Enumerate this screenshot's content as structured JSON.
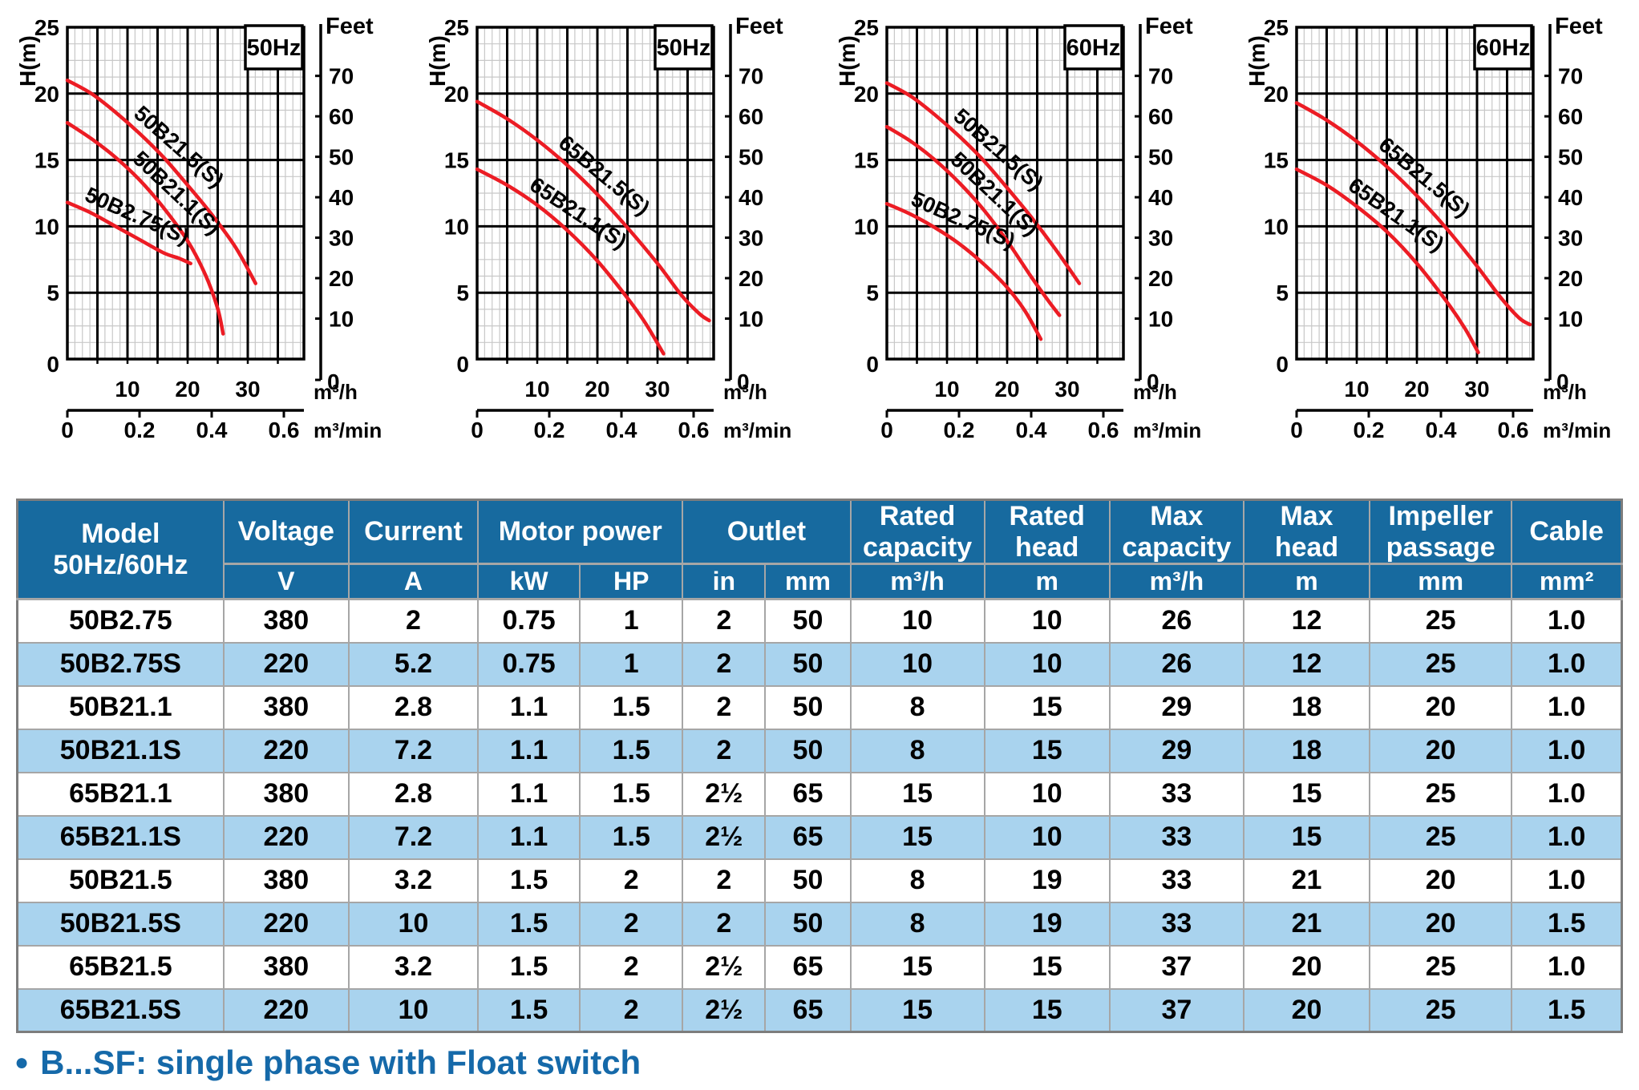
{
  "footer": {
    "bullet": "●",
    "text": "B...SF: single phase with Float switch"
  },
  "colors": {
    "header_blue": "#176a9f",
    "row_alt_blue": "#a9d3ee",
    "curve_red": "#ec1c24",
    "badge_blue": "#2273b6",
    "grid_major": "#000000",
    "grid_minor": "#c8c8c8",
    "note_blue": "#1569a9"
  },
  "chart_data": [
    {
      "type": "line",
      "badge": "50Hz",
      "ylabel_left": "H(m)",
      "ylabel_right": "Feet",
      "xlabel_primary": "m³/h",
      "xlabel_secondary": "m³/min",
      "ylim": [
        0,
        25
      ],
      "xlim_m3h": [
        0,
        39.3
      ],
      "y_ticks_left": [
        25,
        20,
        15,
        10,
        5,
        0
      ],
      "y_ticks_right_feet": [
        70,
        60,
        50,
        40,
        30,
        20,
        10,
        0
      ],
      "x_ticks_m3h": [
        10,
        20,
        30
      ],
      "x_ticks_m3min": [
        "0",
        "0.2",
        "0.4",
        "0.6"
      ],
      "grid": true,
      "series": [
        {
          "name": "50B21.5(S)",
          "label_frac": 0.26,
          "points": [
            [
              0,
              21
            ],
            [
              4,
              20
            ],
            [
              8,
              18.6
            ],
            [
              12,
              17
            ],
            [
              16,
              15.2
            ],
            [
              20,
              13.1
            ],
            [
              24,
              10.9
            ],
            [
              28,
              8.4
            ],
            [
              31.3,
              5.7
            ]
          ]
        },
        {
          "name": "50B21.1(S)",
          "label_frac": 0.27,
          "points": [
            [
              0,
              17.8
            ],
            [
              4,
              16.6
            ],
            [
              8,
              15.2
            ],
            [
              12,
              13.5
            ],
            [
              16,
              11.4
            ],
            [
              20,
              8.9
            ],
            [
              23,
              6.3
            ],
            [
              25,
              3.8
            ],
            [
              25.9,
              1.9
            ]
          ]
        },
        {
          "name": "50B2.75(S)",
          "label_frac": 0.1,
          "points": [
            [
              0,
              11.8
            ],
            [
              4,
              11
            ],
            [
              8,
              10
            ],
            [
              12,
              9
            ],
            [
              16,
              8
            ],
            [
              18.5,
              7.6
            ],
            [
              20.5,
              7.2
            ]
          ]
        }
      ]
    },
    {
      "type": "line",
      "badge": "50Hz",
      "ylabel_left": "H(m)",
      "ylabel_right": "Feet",
      "xlabel_primary": "m³/h",
      "xlabel_secondary": "m³/min",
      "ylim": [
        0,
        25
      ],
      "xlim_m3h": [
        0,
        39.3
      ],
      "y_ticks_left": [
        25,
        20,
        15,
        10,
        5,
        0
      ],
      "y_ticks_right_feet": [
        70,
        60,
        50,
        40,
        30,
        20,
        10,
        0
      ],
      "x_ticks_m3h": [
        10,
        20,
        30
      ],
      "x_ticks_m3min": [
        "0",
        "0.2",
        "0.4",
        "0.6"
      ],
      "grid": true,
      "series": [
        {
          "name": "65B21.5(S)",
          "label_frac": 0.28,
          "points": [
            [
              0,
              19.4
            ],
            [
              5,
              18.1
            ],
            [
              10,
              16.5
            ],
            [
              15,
              14.6
            ],
            [
              20,
              12.4
            ],
            [
              25,
              9.9
            ],
            [
              30,
              7.2
            ],
            [
              34,
              4.8
            ],
            [
              37,
              3.4
            ],
            [
              38.6,
              2.9
            ]
          ]
        },
        {
          "name": "65B21.1(S)",
          "label_frac": 0.2,
          "points": [
            [
              0,
              14.3
            ],
            [
              5,
              13.1
            ],
            [
              10,
              11.6
            ],
            [
              15,
              9.7
            ],
            [
              20,
              7.4
            ],
            [
              25,
              4.6
            ],
            [
              28,
              2.7
            ],
            [
              31,
              0.4
            ]
          ]
        }
      ]
    },
    {
      "type": "line",
      "badge": "60Hz",
      "ylabel_left": "H(m)",
      "ylabel_right": "Feet",
      "xlabel_primary": "m³/h",
      "xlabel_secondary": "m³/min",
      "ylim": [
        0,
        25
      ],
      "xlim_m3h": [
        0,
        39.3
      ],
      "y_ticks_left": [
        25,
        20,
        15,
        10,
        5,
        0
      ],
      "y_ticks_right_feet": [
        70,
        60,
        50,
        40,
        30,
        20,
        10,
        0
      ],
      "x_ticks_m3h": [
        10,
        20,
        30
      ],
      "x_ticks_m3min": [
        "0",
        "0.2",
        "0.4",
        "0.6"
      ],
      "grid": true,
      "series": [
        {
          "name": "50B21.5(S)",
          "label_frac": 0.26,
          "points": [
            [
              0,
              20.8
            ],
            [
              4,
              19.8
            ],
            [
              8,
              18.4
            ],
            [
              12,
              16.8
            ],
            [
              16,
              15
            ],
            [
              20,
              12.9
            ],
            [
              24,
              10.7
            ],
            [
              28,
              8.3
            ],
            [
              32,
              5.7
            ]
          ]
        },
        {
          "name": "50B21.1(S)",
          "label_frac": 0.27,
          "points": [
            [
              0,
              17.5
            ],
            [
              4,
              16.4
            ],
            [
              8,
              15
            ],
            [
              12,
              13.3
            ],
            [
              16,
              11.3
            ],
            [
              20,
              8.9
            ],
            [
              24,
              6.2
            ],
            [
              27,
              4.3
            ],
            [
              28.7,
              3.3
            ]
          ]
        },
        {
          "name": "50B2.75(S)",
          "label_frac": 0.1,
          "points": [
            [
              0,
              11.7
            ],
            [
              4,
              10.9
            ],
            [
              8,
              9.9
            ],
            [
              12,
              8.7
            ],
            [
              16,
              7.2
            ],
            [
              20,
              5.4
            ],
            [
              23,
              3.6
            ],
            [
              25.6,
              1.5
            ]
          ]
        }
      ]
    },
    {
      "type": "line",
      "badge": "60Hz",
      "ylabel_left": "H(m)",
      "ylabel_right": "Feet",
      "xlabel_primary": "m³/h",
      "xlabel_secondary": "m³/min",
      "ylim": [
        0,
        25
      ],
      "xlim_m3h": [
        0,
        39.3
      ],
      "y_ticks_left": [
        25,
        20,
        15,
        10,
        5,
        0
      ],
      "y_ticks_right_feet": [
        70,
        60,
        50,
        40,
        30,
        20,
        10,
        0
      ],
      "x_ticks_m3h": [
        10,
        20,
        30
      ],
      "x_ticks_m3min": [
        "0",
        "0.2",
        "0.4",
        "0.6"
      ],
      "grid": true,
      "series": [
        {
          "name": "65B21.5(S)",
          "label_frac": 0.28,
          "points": [
            [
              0,
              19.3
            ],
            [
              5,
              18
            ],
            [
              10,
              16.4
            ],
            [
              15,
              14.5
            ],
            [
              20,
              12.3
            ],
            [
              25,
              9.8
            ],
            [
              30,
              7
            ],
            [
              34,
              4.6
            ],
            [
              37,
              3.1
            ],
            [
              38.8,
              2.6
            ]
          ]
        },
        {
          "name": "65B21.1(S)",
          "label_frac": 0.2,
          "points": [
            [
              0,
              14.3
            ],
            [
              5,
              13.1
            ],
            [
              10,
              11.5
            ],
            [
              15,
              9.6
            ],
            [
              20,
              7.2
            ],
            [
              25,
              4.3
            ],
            [
              28,
              2.3
            ],
            [
              30.2,
              0.5
            ]
          ]
        }
      ]
    }
  ],
  "table": {
    "header": {
      "model_line1": "Model",
      "model_line2": "50Hz/60Hz",
      "groups": [
        {
          "label": "Voltage"
        },
        {
          "label": "Current"
        },
        {
          "label": "Motor power"
        },
        {
          "label": "Outlet"
        },
        {
          "label": "Rated capacity"
        },
        {
          "label": "Rated head"
        },
        {
          "label": "Max capacity"
        },
        {
          "label": "Max head"
        },
        {
          "label": "Impeller passage"
        },
        {
          "label": "Cable"
        }
      ],
      "units": [
        "V",
        "A",
        "kW",
        "HP",
        "in",
        "mm",
        "m³/h",
        "m",
        "m³/h",
        "m",
        "mm",
        "mm²"
      ]
    },
    "rows": [
      [
        "50B2.75",
        "380",
        "2",
        "0.75",
        "1",
        "2",
        "50",
        "10",
        "10",
        "26",
        "12",
        "25",
        "1.0"
      ],
      [
        "50B2.75S",
        "220",
        "5.2",
        "0.75",
        "1",
        "2",
        "50",
        "10",
        "10",
        "26",
        "12",
        "25",
        "1.0"
      ],
      [
        "50B21.1",
        "380",
        "2.8",
        "1.1",
        "1.5",
        "2",
        "50",
        "8",
        "15",
        "29",
        "18",
        "20",
        "1.0"
      ],
      [
        "50B21.1S",
        "220",
        "7.2",
        "1.1",
        "1.5",
        "2",
        "50",
        "8",
        "15",
        "29",
        "18",
        "20",
        "1.0"
      ],
      [
        "65B21.1",
        "380",
        "2.8",
        "1.1",
        "1.5",
        "2½",
        "65",
        "15",
        "10",
        "33",
        "15",
        "25",
        "1.0"
      ],
      [
        "65B21.1S",
        "220",
        "7.2",
        "1.1",
        "1.5",
        "2½",
        "65",
        "15",
        "10",
        "33",
        "15",
        "25",
        "1.0"
      ],
      [
        "50B21.5",
        "380",
        "3.2",
        "1.5",
        "2",
        "2",
        "50",
        "8",
        "19",
        "33",
        "21",
        "20",
        "1.0"
      ],
      [
        "50B21.5S",
        "220",
        "10",
        "1.5",
        "2",
        "2",
        "50",
        "8",
        "19",
        "33",
        "21",
        "20",
        "1.5"
      ],
      [
        "65B21.5",
        "380",
        "3.2",
        "1.5",
        "2",
        "2½",
        "65",
        "15",
        "15",
        "37",
        "20",
        "25",
        "1.0"
      ],
      [
        "65B21.5S",
        "220",
        "10",
        "1.5",
        "2",
        "2½",
        "65",
        "15",
        "15",
        "37",
        "20",
        "25",
        "1.5"
      ]
    ]
  }
}
